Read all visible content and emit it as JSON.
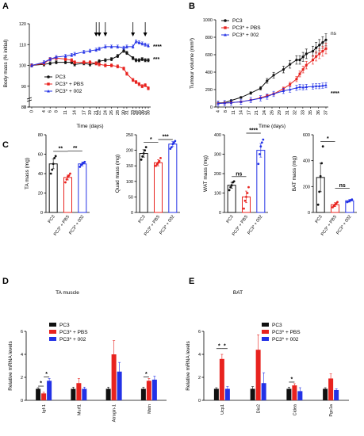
{
  "colors": {
    "black": "#111111",
    "red": "#e8231f",
    "blue": "#2332e6"
  },
  "chart_data": [
    {
      "panel": "A",
      "type": "line",
      "xlabel": "Time (days)",
      "ylabel": "Body mass (% initial)",
      "ylim": [
        0,
        120
      ],
      "yticks": [
        0,
        80,
        90,
        100,
        110,
        120
      ],
      "x": [
        0,
        4,
        6,
        8,
        11,
        13,
        14,
        17,
        19,
        21,
        22,
        24,
        26,
        28,
        30,
        31,
        33,
        34,
        35,
        36,
        37,
        38
      ],
      "x_tick_labels": [
        "0",
        "4",
        "6",
        "8",
        "11",
        "14",
        "17",
        "19",
        "21",
        "22",
        "24",
        "26",
        "28",
        "30",
        "31",
        "33",
        "34",
        "35",
        "36",
        "37",
        "38"
      ],
      "arrow_days": [
        21,
        22,
        24,
        33,
        37
      ],
      "series": [
        {
          "name": "PC3",
          "color": "black",
          "values": [
            100,
            100.5,
            101,
            101.5,
            101.5,
            101.5,
            100.5,
            101,
            100.5,
            101,
            102,
            102.5,
            103,
            104.5,
            107,
            106,
            103.5,
            102.5,
            102.5,
            103,
            102.5,
            102.5
          ]
        },
        {
          "name": "PC3* + PBS",
          "color": "red",
          "values": [
            100,
            101,
            103,
            103.5,
            103,
            102.5,
            101.5,
            101.5,
            101.5,
            101,
            100.5,
            100,
            100,
            99.5,
            98.5,
            96,
            93,
            92,
            91,
            90,
            90.5,
            89
          ]
        },
        {
          "name": "PC3* + 002",
          "color": "blue",
          "values": [
            100,
            101.5,
            103,
            104,
            104.5,
            105,
            105.5,
            106.5,
            107,
            107.5,
            108,
            109,
            109,
            109,
            108.5,
            109,
            109,
            111.5,
            111,
            110.5,
            110,
            109.5
          ]
        }
      ],
      "annotations": [
        "****",
        "***"
      ]
    },
    {
      "panel": "B",
      "type": "line",
      "xlabel": "Time (days)",
      "ylabel": "Tumour volume (mm³)",
      "ylim": [
        0,
        1000
      ],
      "yticks": [
        0,
        200,
        400,
        600,
        800,
        1000
      ],
      "x": [
        4,
        6,
        8,
        11,
        14,
        17,
        19,
        21,
        24,
        26,
        28,
        29,
        30,
        31,
        33,
        34,
        35,
        36,
        37
      ],
      "x_tick_labels": [
        "4",
        "8",
        "11",
        "14",
        "17",
        "21",
        "24",
        "26",
        "29",
        "31",
        "32",
        "33",
        "35",
        "36",
        "37"
      ],
      "series": [
        {
          "name": "PC3",
          "color": "black",
          "values": [
            45,
            50,
            75,
            110,
            160,
            215,
            300,
            365,
            430,
            490,
            540,
            540,
            575,
            610,
            640,
            680,
            710,
            740,
            770
          ]
        },
        {
          "name": "PC3* + PBS",
          "color": "red",
          "values": [
            40,
            45,
            50,
            60,
            80,
            105,
            130,
            150,
            210,
            260,
            320,
            380,
            430,
            480,
            540,
            580,
            610,
            640,
            670
          ]
        },
        {
          "name": "PC3* + 002",
          "color": "blue",
          "values": [
            40,
            45,
            50,
            60,
            80,
            100,
            120,
            150,
            185,
            200,
            220,
            230,
            225,
            230,
            235,
            240,
            240,
            245,
            250
          ]
        }
      ],
      "annotations": [
        "ns",
        "****"
      ]
    },
    {
      "panel": "C",
      "type": "bar",
      "group": "TA",
      "ylabel": "TA mass (mg)",
      "ylim": [
        0,
        80
      ],
      "yticks": [
        0,
        20,
        40,
        60,
        80
      ],
      "categories": [
        "PC3",
        "PC3* + PBS",
        "PC3* + 002"
      ],
      "values": [
        50,
        36,
        50
      ],
      "sem": [
        5,
        2.5,
        2
      ],
      "points": [
        [
          40,
          44,
          50,
          56,
          58
        ],
        [
          31,
          34,
          37,
          38,
          40
        ],
        [
          47,
          49,
          50,
          51,
          52
        ]
      ],
      "significance": [
        {
          "pair": [
            0,
            1
          ],
          "label": "**"
        },
        {
          "pair": [
            1,
            2
          ],
          "label": "**"
        }
      ]
    },
    {
      "panel": "C",
      "type": "bar",
      "group": "Quad",
      "ylabel": "Quad mass (mg)",
      "ylim": [
        0,
        250
      ],
      "yticks": [
        0,
        50,
        100,
        150,
        200,
        250
      ],
      "categories": [
        "PC3",
        "PC3* + PBS",
        "PC3* + 002"
      ],
      "values": [
        190,
        160,
        220
      ],
      "sem": [
        12,
        10,
        8
      ],
      "points": [
        [
          170,
          180,
          190,
          200,
          210
        ],
        [
          150,
          155,
          160,
          165,
          175
        ],
        [
          205,
          210,
          220,
          225,
          230
        ]
      ],
      "significance": [
        {
          "pair": [
            0,
            1
          ],
          "label": "*"
        },
        {
          "pair": [
            1,
            2
          ],
          "label": "***"
        }
      ]
    },
    {
      "panel": "C",
      "type": "bar",
      "group": "WAT",
      "ylabel": "WAT mass (mg)",
      "ylim": [
        0,
        400
      ],
      "yticks": [
        0,
        100,
        200,
        300,
        400
      ],
      "categories": [
        "PC3",
        "PC3* + PBS",
        "PC3* + 002"
      ],
      "values": [
        140,
        80,
        320
      ],
      "sem": [
        15,
        30,
        35
      ],
      "points": [
        [
          115,
          130,
          140,
          155,
          160
        ],
        [
          20,
          60,
          80,
          100,
          130
        ],
        [
          250,
          300,
          340,
          360,
          375
        ]
      ],
      "significance": [
        {
          "pair": [
            0,
            1
          ],
          "label": "ns"
        },
        {
          "pair": [
            1,
            2
          ],
          "label": "****"
        }
      ]
    },
    {
      "panel": "C",
      "type": "bar",
      "group": "BAT",
      "ylabel": "BAT mass (mg)",
      "ylim": [
        0,
        600
      ],
      "yticks": [
        0,
        200,
        400,
        600
      ],
      "categories": [
        "PC3",
        "PC3* + PBS",
        "PC3* + 002"
      ],
      "values": [
        270,
        60,
        90
      ],
      "sem": [
        110,
        15,
        10
      ],
      "points": [
        [
          60,
          160,
          280,
          380,
          510
        ],
        [
          40,
          50,
          60,
          70,
          80
        ],
        [
          80,
          85,
          90,
          95,
          100
        ]
      ],
      "significance": [
        {
          "pair": [
            0,
            1
          ],
          "label": "*"
        },
        {
          "pair": [
            1,
            2
          ],
          "label": "ns"
        }
      ]
    },
    {
      "panel": "D",
      "type": "bar",
      "title": "TA muscle",
      "ylabel": "Relative mRNA levels",
      "ylim": [
        0,
        6
      ],
      "yticks": [
        0,
        2,
        4,
        6
      ],
      "categories": [
        "Igf-1",
        "Murf1",
        "Atrogin-1",
        "Mstn"
      ],
      "series": [
        {
          "name": "PC3",
          "color": "black",
          "values": [
            1,
            1,
            1,
            1
          ],
          "sem": [
            0.1,
            0.15,
            0.15,
            0.15
          ]
        },
        {
          "name": "PC3* + PBS",
          "color": "red",
          "values": [
            0.6,
            1.5,
            4.0,
            1.7
          ],
          "sem": [
            0.1,
            0.4,
            1.2,
            0.2
          ]
        },
        {
          "name": "PC3* + 002",
          "color": "blue",
          "values": [
            1.7,
            1.0,
            2.5,
            1.8
          ],
          "sem": [
            0.2,
            0.15,
            0.8,
            0.3
          ]
        }
      ],
      "significance": [
        {
          "category": 0,
          "pair": [
            0,
            1
          ],
          "label": "*"
        },
        {
          "category": 0,
          "pair": [
            1,
            2
          ],
          "label": "*"
        },
        {
          "category": 3,
          "pair": [
            0,
            1
          ],
          "label": "*"
        }
      ]
    },
    {
      "panel": "E",
      "type": "bar",
      "title": "BAT",
      "ylabel": "Relative mRNA levels",
      "ylim": [
        0,
        6
      ],
      "yticks": [
        0,
        2,
        4,
        6
      ],
      "categories": [
        "Ucp1",
        "Dio2",
        "Cidea",
        "Pgc1a"
      ],
      "series": [
        {
          "name": "PC3",
          "color": "black",
          "values": [
            1,
            1,
            1,
            1
          ],
          "sem": [
            0.1,
            0.2,
            0.15,
            0.1
          ]
        },
        {
          "name": "PC3* + PBS",
          "color": "red",
          "values": [
            3.6,
            4.4,
            1.3,
            1.9
          ],
          "sem": [
            0.4,
            1.3,
            0.15,
            0.4
          ]
        },
        {
          "name": "PC3* + 002",
          "color": "blue",
          "values": [
            1.0,
            1.5,
            0.8,
            0.9
          ],
          "sem": [
            0.2,
            0.9,
            0.3,
            0.1
          ]
        }
      ],
      "significance": [
        {
          "category": 0,
          "pair": [
            0,
            1
          ],
          "label": "*"
        },
        {
          "category": 0,
          "pair": [
            1,
            2
          ],
          "label": "*"
        },
        {
          "category": 2,
          "pair": [
            0,
            1
          ],
          "label": "*"
        }
      ]
    }
  ]
}
